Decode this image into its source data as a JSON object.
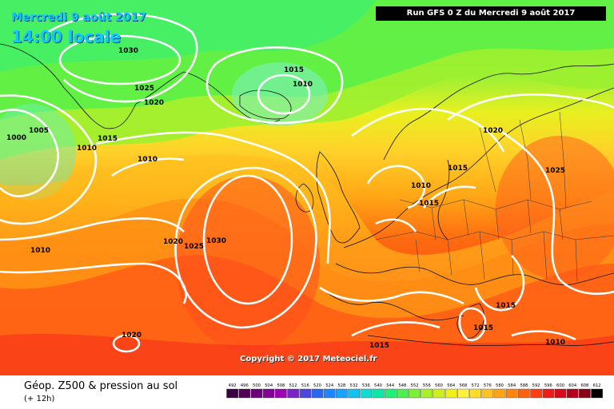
{
  "header": {
    "date": "Mercredi 9 août 2017",
    "time": "14:00 locale",
    "run": "Run GFS 0 Z du Mercredi 9 août 2017"
  },
  "copyright": "Copyright © 2017 Meteociel.fr",
  "footer": {
    "title": "Géop. Z500 & pression au sol",
    "subtitle": "(+ 12h)"
  },
  "legend": {
    "ticks": [
      "492",
      "496",
      "500",
      "504",
      "508",
      "512",
      "516",
      "520",
      "524",
      "528",
      "532",
      "536",
      "540",
      "544",
      "548",
      "552",
      "556",
      "560",
      "564",
      "568",
      "572",
      "576",
      "580",
      "584",
      "588",
      "592",
      "596",
      "600",
      "604",
      "608",
      "612"
    ],
    "colors": [
      "#3b003f",
      "#52005a",
      "#6d0079",
      "#860098",
      "#a000b5",
      "#7a24c8",
      "#4e46e0",
      "#2b66f0",
      "#1d86ff",
      "#17a4ff",
      "#14c2f0",
      "#10dcd2",
      "#0ee8a6",
      "#22ee78",
      "#4cf04e",
      "#7cf036",
      "#a8f02a",
      "#cff020",
      "#f2f01c",
      "#fff23a",
      "#ffdc2c",
      "#ffc21e",
      "#ffa416",
      "#ff8510",
      "#ff620e",
      "#ff3e12",
      "#f01c1a",
      "#d80a1e",
      "#b4001c",
      "#8a0014",
      "#000000"
    ]
  },
  "isobar_labels": [
    {
      "text": "1030"
    },
    {
      "text": "1025"
    },
    {
      "text": "1020"
    },
    {
      "text": "1005"
    },
    {
      "text": "1000"
    },
    {
      "text": "1010"
    },
    {
      "text": "1015"
    },
    {
      "text": "1010"
    },
    {
      "text": "1015"
    },
    {
      "text": "1010"
    },
    {
      "text": "1020"
    },
    {
      "text": "1025"
    },
    {
      "text": "1030"
    },
    {
      "text": "1010"
    },
    {
      "text": "1020"
    },
    {
      "text": "1025"
    },
    {
      "text": "1010"
    },
    {
      "text": "1015"
    },
    {
      "text": "1015"
    },
    {
      "text": "1015"
    },
    {
      "text": "1015"
    },
    {
      "text": "1010"
    },
    {
      "text": "1020"
    },
    {
      "text": "1015"
    }
  ]
}
